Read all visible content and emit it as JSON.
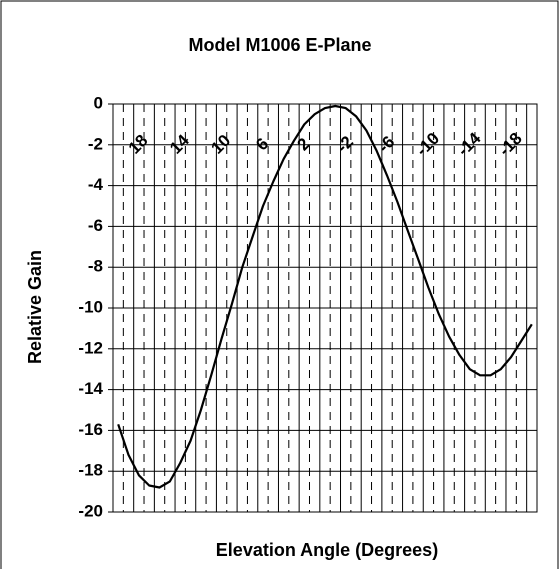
{
  "chart_data": {
    "type": "line",
    "title": "Model M1006 E-Plane",
    "x_label": "Elevation Angle (Degrees)",
    "y_label": "Relative Gain",
    "categories": [
      null,
      null,
      "18",
      null,
      null,
      null,
      "14",
      null,
      null,
      null,
      "10",
      null,
      null,
      null,
      "6",
      null,
      null,
      null,
      "2",
      null,
      null,
      null,
      "-2",
      null,
      null,
      null,
      "-6",
      null,
      null,
      null,
      "-10",
      null,
      null,
      null,
      "-14",
      null,
      null,
      null,
      "-18",
      null,
      null
    ],
    "series": [
      {
        "name": "E-Plane",
        "color": "#000000",
        "values": [
          -15.7,
          -17.2,
          -18.2,
          -18.7,
          -18.8,
          -18.5,
          -17.6,
          -16.5,
          -15.0,
          -13.3,
          -11.5,
          -9.8,
          -8.0,
          -6.5,
          -5.0,
          -3.8,
          -2.7,
          -1.8,
          -1.0,
          -0.5,
          -0.2,
          -0.1,
          -0.2,
          -0.6,
          -1.3,
          -2.3,
          -3.5,
          -4.8,
          -6.2,
          -7.6,
          -9.0,
          -10.3,
          -11.4,
          -12.3,
          -13.0,
          -13.3,
          -13.3,
          -13.0,
          -12.4,
          -11.6,
          -10.8
        ]
      }
    ],
    "ylim": [
      -20,
      0
    ],
    "yticks": [
      -20,
      -18,
      -16,
      -14,
      -12,
      -10,
      -8,
      -6,
      -4,
      -2,
      0
    ],
    "grid": true
  }
}
